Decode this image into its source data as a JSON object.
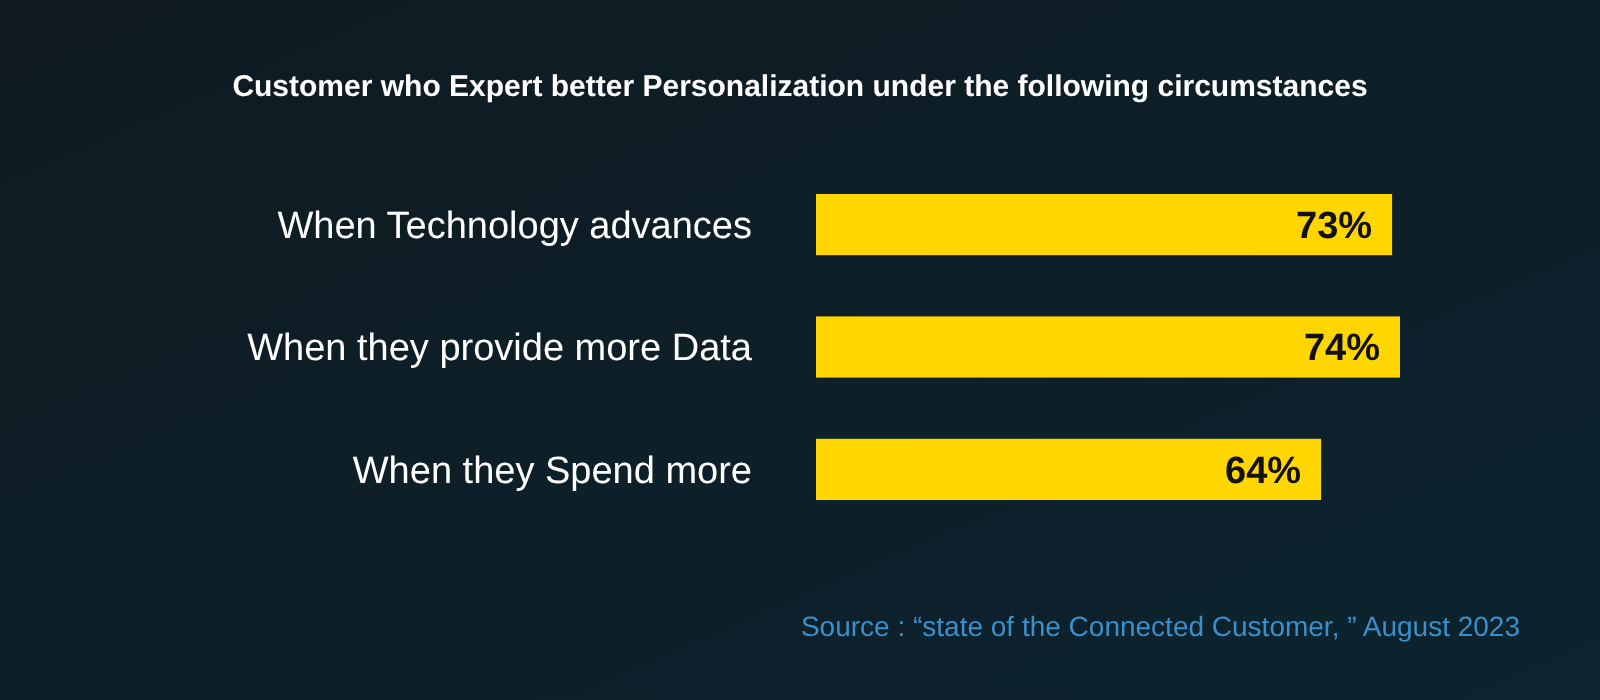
{
  "chart_data": {
    "type": "bar",
    "orientation": "horizontal",
    "title": "Customer who Expert better Personalization under the following circumstances",
    "categories": [
      "When Technology advances",
      "When they provide more Data",
      "When they Spend more"
    ],
    "values": [
      73,
      74,
      64
    ],
    "color": "#ffd600",
    "value_labels": [
      "73%",
      "74%",
      "64%"
    ],
    "annotations": [
      "Source : “state of the Connected Customer, ” August 2023"
    ]
  }
}
